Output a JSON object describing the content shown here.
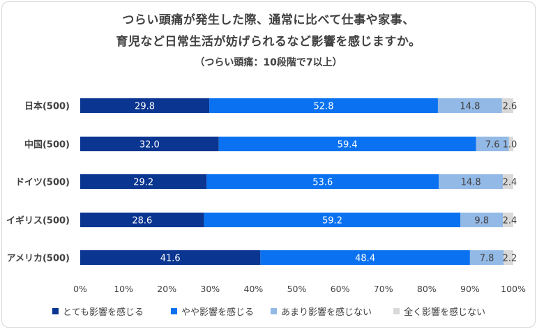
{
  "chart_data": {
    "type": "bar",
    "orientation": "horizontal",
    "stacked": true,
    "title_line1": "つらい頭痛が発生した際、通常に比べて仕事や家事、",
    "title_line2": "育児など日常生活が妨げられるなど影響を感じますか。",
    "subtitle": "（つらい頭痛：10段階で7以上）",
    "categories": [
      "日本(500)",
      "中国(500)",
      "ドイツ(500)",
      "イギリス(500)",
      "アメリカ(500)"
    ],
    "series": [
      {
        "name": "とても影響を感じる",
        "color": "#0a3590",
        "label_color": "#ffffff",
        "values": [
          29.8,
          32.0,
          29.2,
          28.6,
          41.6
        ]
      },
      {
        "name": "やや影響を感じる",
        "color": "#0a72f0",
        "label_color": "#ffffff",
        "values": [
          52.8,
          59.4,
          53.6,
          59.2,
          48.4
        ]
      },
      {
        "name": "あまり影響を感じない",
        "color": "#93b9e6",
        "label_color": "#404040",
        "values": [
          14.8,
          7.6,
          14.8,
          9.8,
          7.8
        ]
      },
      {
        "name": "全く影響を感じない",
        "color": "#d9d9d9",
        "label_color": "#404040",
        "values": [
          2.6,
          1.0,
          2.4,
          2.4,
          2.2
        ]
      }
    ],
    "x_ticks": [
      "0%",
      "10%",
      "20%",
      "30%",
      "40%",
      "50%",
      "60%",
      "70%",
      "80%",
      "90%",
      "100%"
    ],
    "xlim": [
      0,
      100
    ],
    "grid": false,
    "legend_position": "bottom"
  }
}
